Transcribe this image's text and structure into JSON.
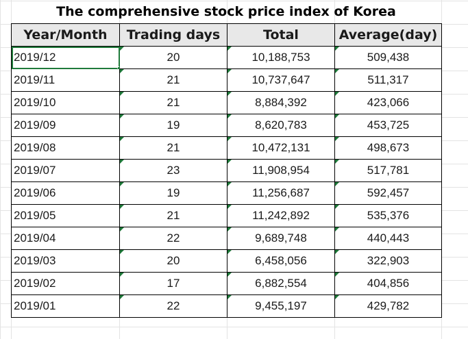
{
  "sheet": {
    "title": "The comprehensive stock price index of Korea",
    "headers": [
      "Year/Month",
      "Trading days",
      "Total",
      "Average(day)"
    ],
    "rows": [
      {
        "month": "2019/12",
        "days": "20",
        "total": "10,188,753",
        "average": "509,438"
      },
      {
        "month": "2019/11",
        "days": "21",
        "total": "10,737,647",
        "average": "511,317"
      },
      {
        "month": "2019/10",
        "days": "21",
        "total": "8,884,392",
        "average": "423,066"
      },
      {
        "month": "2019/09",
        "days": "19",
        "total": "8,620,783",
        "average": "453,725"
      },
      {
        "month": "2019/08",
        "days": "21",
        "total": "10,472,131",
        "average": "498,673"
      },
      {
        "month": "2019/07",
        "days": "23",
        "total": "11,908,954",
        "average": "517,781"
      },
      {
        "month": "2019/06",
        "days": "19",
        "total": "11,256,687",
        "average": "592,457"
      },
      {
        "month": "2019/05",
        "days": "21",
        "total": "11,242,892",
        "average": "535,376"
      },
      {
        "month": "2019/04",
        "days": "22",
        "total": "9,689,748",
        "average": "440,443"
      },
      {
        "month": "2019/03",
        "days": "20",
        "total": "6,458,056",
        "average": "322,903"
      },
      {
        "month": "2019/02",
        "days": "17",
        "total": "6,882,554",
        "average": "404,856"
      },
      {
        "month": "2019/01",
        "days": "22",
        "total": "9,455,197",
        "average": "429,782"
      }
    ]
  },
  "colors": {
    "header_fill": "#e8e8e8",
    "error_flag": "#1f7a3a",
    "selection": "#1f7a3a",
    "gridline": "#e3e3e3"
  }
}
